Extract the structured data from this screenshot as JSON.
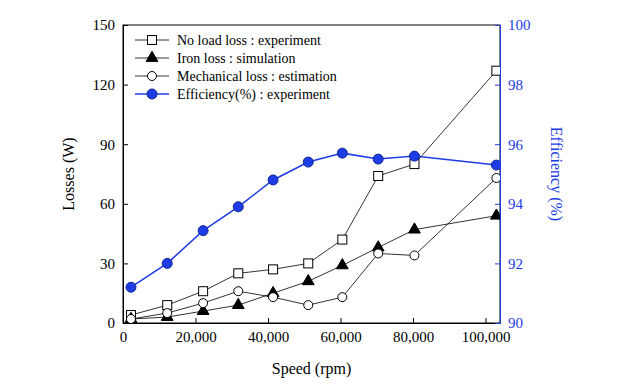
{
  "chart_data": {
    "type": "line",
    "x_label": "Speed (rpm)",
    "y_label": "Losses (W)",
    "y2_label": "Efficiency (%)",
    "x": [
      2200,
      12200,
      22100,
      31800,
      41400,
      51100,
      60500,
      70400,
      80400,
      103000
    ],
    "xlim": [
      0,
      104000
    ],
    "xticks": [
      0,
      {
        "value": 20000,
        "label": "20,000"
      },
      {
        "value": 40000,
        "label": "40,000"
      },
      {
        "value": 60000,
        "label": "60,000"
      },
      {
        "value": 80000,
        "label": "80,000"
      },
      {
        "value": 100000,
        "label": "100,000"
      }
    ],
    "ylim": [
      0,
      150
    ],
    "yticks": [
      0,
      30,
      60,
      90,
      120,
      150
    ],
    "y2lim": [
      90,
      100
    ],
    "y2ticks": [
      90,
      92,
      94,
      96,
      98,
      100
    ],
    "legend": "upper left",
    "grid": false,
    "series": [
      {
        "name": "No load loss : experiment",
        "color": "#000000",
        "marker": "square-open",
        "line_style": "solid",
        "values": [
          4,
          9,
          16,
          25,
          27,
          30,
          42,
          74,
          80,
          127
        ]
      },
      {
        "name": "Iron loss : simulation",
        "color": "#000000",
        "marker": "triangle",
        "line_style": "solid",
        "values": [
          2,
          3,
          6,
          9,
          15,
          21,
          29,
          38,
          47,
          54
        ]
      },
      {
        "name": "Mechanical loss : estimation",
        "color": "#000000",
        "marker": "circle-open",
        "line_style": "solid",
        "values": [
          2,
          5,
          10,
          16,
          13,
          9,
          13,
          35,
          34,
          73
        ]
      },
      {
        "name": "Efficiency(%) : experiment",
        "color": "#1e3ce6",
        "marker": "circle",
        "line_style": "solid",
        "axis": "y2",
        "values": [
          91.2,
          92.0,
          93.1,
          93.9,
          94.8,
          95.4,
          95.7,
          95.5,
          95.6,
          95.3
        ]
      }
    ]
  }
}
